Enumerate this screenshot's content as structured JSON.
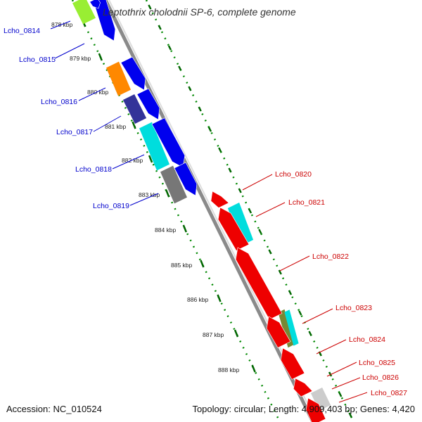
{
  "title": "Leptothrix cholodnii SP-6, complete genome",
  "footer": {
    "accession": "Accession: NC_010524",
    "summary": "Topology: circular; Length: 4,909,403 bp; Genes: 4,420"
  },
  "ticks": [
    "878 kbp",
    "879 kbp",
    "880 kbp",
    "881 kbp",
    "882 kbp",
    "883 kbp",
    "884 kbp",
    "885 kbp",
    "886 kbp",
    "887 kbp",
    "888 kbp"
  ],
  "forward_genes": [
    "Lcho_0814",
    "Lcho_0815",
    "Lcho_0816",
    "Lcho_0817",
    "Lcho_0818",
    "Lcho_0819"
  ],
  "reverse_genes": [
    "Lcho_0820",
    "Lcho_0821",
    "Lcho_0822",
    "Lcho_0823",
    "Lcho_0824",
    "Lcho_0825",
    "Lcho_0826",
    "Lcho_0827"
  ],
  "colors": {
    "forward_label": "#0000cc",
    "reverse_label": "#cc0000",
    "forward_cds": "#0000ee",
    "reverse_cds": "#ee0000",
    "backbone": "#888888",
    "gc_dots": "#008800",
    "cog_yellowgreen": "#99ee33",
    "cog_orange": "#ff8800",
    "cog_cyan": "#00dddd",
    "cog_gray": "#777777",
    "cog_olive": "#778833",
    "cog_navy": "#333399",
    "cog_light": "#cccccc"
  }
}
